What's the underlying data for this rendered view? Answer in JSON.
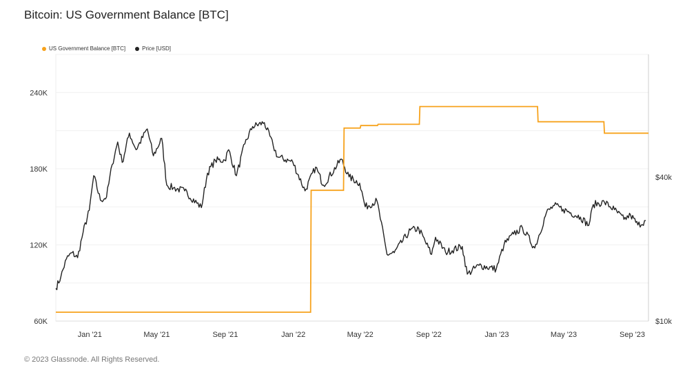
{
  "title": "Bitcoin: US Government Balance [BTC]",
  "footer": "© 2023 Glassnode. All Rights Reserved.",
  "colors": {
    "balance": "#f7a21b",
    "price": "#222222",
    "grid": "#eeeeee",
    "axis": "#cccccc"
  },
  "chart_data": {
    "type": "line",
    "title": "Bitcoin: US Government Balance [BTC]",
    "legend_position": "top-left",
    "grid": true,
    "x_range": [
      "2020-11-01",
      "2023-09-30"
    ],
    "x_ticks": [
      {
        "date": "2021-01-01",
        "label": "Jan '21"
      },
      {
        "date": "2021-05-01",
        "label": "May '21"
      },
      {
        "date": "2021-09-01",
        "label": "Sep '21"
      },
      {
        "date": "2022-01-01",
        "label": "Jan '22"
      },
      {
        "date": "2022-05-01",
        "label": "May '22"
      },
      {
        "date": "2022-09-01",
        "label": "Sep '22"
      },
      {
        "date": "2023-01-01",
        "label": "Jan '23"
      },
      {
        "date": "2023-05-01",
        "label": "May '23"
      },
      {
        "date": "2023-09-01",
        "label": "Sep '23"
      }
    ],
    "y_left": {
      "range": [
        60000,
        270000
      ],
      "ticks": [
        60000,
        120000,
        180000,
        240000
      ],
      "tick_labels": [
        "60K",
        "120K",
        "180K",
        "240K"
      ]
    },
    "y_right": {
      "scale": "log",
      "range": [
        10000,
        130000
      ],
      "ticks": [
        10000,
        40000
      ],
      "tick_labels": [
        "$10k",
        "$40k"
      ]
    },
    "series": [
      {
        "name": "US Government Balance [BTC]",
        "axis": "left",
        "step": true,
        "points": [
          [
            "2020-11-01",
            67000
          ],
          [
            "2022-02-01",
            67000
          ],
          [
            "2022-02-02",
            163000
          ],
          [
            "2022-04-01",
            163000
          ],
          [
            "2022-04-02",
            212000
          ],
          [
            "2022-05-01",
            212000
          ],
          [
            "2022-05-02",
            214000
          ],
          [
            "2022-06-01",
            214000
          ],
          [
            "2022-06-02",
            215000
          ],
          [
            "2022-08-15",
            215000
          ],
          [
            "2022-08-16",
            229000
          ],
          [
            "2023-03-15",
            229000
          ],
          [
            "2023-03-16",
            217000
          ],
          [
            "2023-07-12",
            217000
          ],
          [
            "2023-07-13",
            208000
          ],
          [
            "2023-09-30",
            208000
          ]
        ]
      },
      {
        "name": "Price [USD]",
        "axis": "right",
        "step": false,
        "points": [
          [
            "2020-11-01",
            13700
          ],
          [
            "2020-11-10",
            15300
          ],
          [
            "2020-11-20",
            18200
          ],
          [
            "2020-11-30",
            19300
          ],
          [
            "2020-12-10",
            18400
          ],
          [
            "2020-12-20",
            23500
          ],
          [
            "2020-12-31",
            29000
          ],
          [
            "2021-01-08",
            40500
          ],
          [
            "2021-01-20",
            32000
          ],
          [
            "2021-01-31",
            33000
          ],
          [
            "2021-02-10",
            45000
          ],
          [
            "2021-02-20",
            56000
          ],
          [
            "2021-02-28",
            46000
          ],
          [
            "2021-03-13",
            61000
          ],
          [
            "2021-03-25",
            52000
          ],
          [
            "2021-04-14",
            63500
          ],
          [
            "2021-04-25",
            49000
          ],
          [
            "2021-05-10",
            58000
          ],
          [
            "2021-05-19",
            37000
          ],
          [
            "2021-05-31",
            36000
          ],
          [
            "2021-06-20",
            35000
          ],
          [
            "2021-07-20",
            29800
          ],
          [
            "2021-07-31",
            41500
          ],
          [
            "2021-08-14",
            47000
          ],
          [
            "2021-08-31",
            47000
          ],
          [
            "2021-09-07",
            52000
          ],
          [
            "2021-09-21",
            40500
          ],
          [
            "2021-10-06",
            55000
          ],
          [
            "2021-10-20",
            65000
          ],
          [
            "2021-11-10",
            67500
          ],
          [
            "2021-11-26",
            54000
          ],
          [
            "2021-12-04",
            48500
          ],
          [
            "2021-12-31",
            46200
          ],
          [
            "2022-01-22",
            35000
          ],
          [
            "2022-02-10",
            44000
          ],
          [
            "2022-02-24",
            37000
          ],
          [
            "2022-03-28",
            47500
          ],
          [
            "2022-04-11",
            40000
          ],
          [
            "2022-04-30",
            37700
          ],
          [
            "2022-05-10",
            30000
          ],
          [
            "2022-05-31",
            31800
          ],
          [
            "2022-06-18",
            19000
          ],
          [
            "2022-07-01",
            19300
          ],
          [
            "2022-07-30",
            24000
          ],
          [
            "2022-08-14",
            24300
          ],
          [
            "2022-09-06",
            19000
          ],
          [
            "2022-09-13",
            22400
          ],
          [
            "2022-10-01",
            19400
          ],
          [
            "2022-10-31",
            20500
          ],
          [
            "2022-11-09",
            15700
          ],
          [
            "2022-11-30",
            17100
          ],
          [
            "2022-12-31",
            16500
          ],
          [
            "2023-01-14",
            20900
          ],
          [
            "2023-01-31",
            23100
          ],
          [
            "2023-02-16",
            24500
          ],
          [
            "2023-03-10",
            20200
          ],
          [
            "2023-03-31",
            28400
          ],
          [
            "2023-04-14",
            30400
          ],
          [
            "2023-04-30",
            29300
          ],
          [
            "2023-05-31",
            27200
          ],
          [
            "2023-06-15",
            25100
          ],
          [
            "2023-06-23",
            30700
          ],
          [
            "2023-07-13",
            31400
          ],
          [
            "2023-07-31",
            29200
          ],
          [
            "2023-08-17",
            26600
          ],
          [
            "2023-08-29",
            27700
          ],
          [
            "2023-09-11",
            25200
          ],
          [
            "2023-09-25",
            26300
          ]
        ]
      }
    ]
  }
}
